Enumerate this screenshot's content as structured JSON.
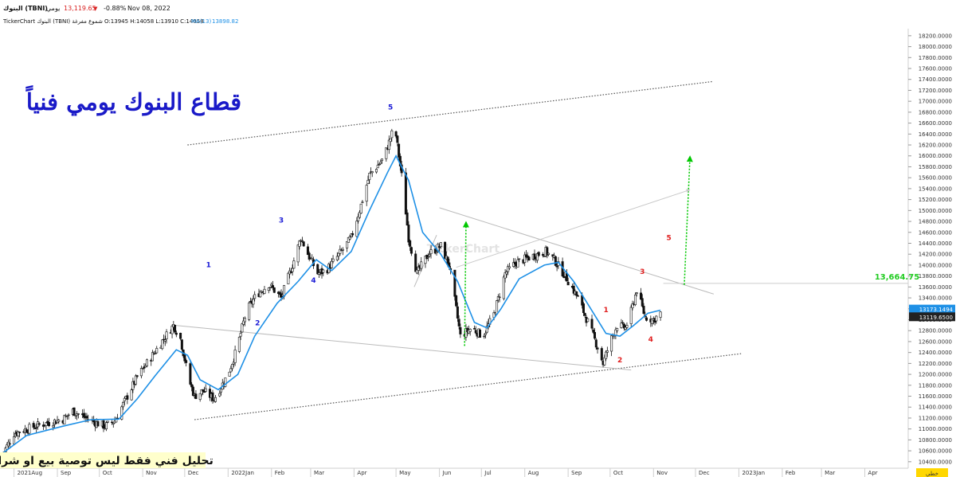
{
  "header": {
    "symbol": "البنوك (TBNI)",
    "period": "يومي",
    "last_price": "13,119.65",
    "change_pct": "-0.88%",
    "date": "Nov 08, 2022",
    "brand_line": "TickerChart البنوك (TBNI) شموع مفرغة O:13945 H:14058 L:13910 C:14058",
    "ma_label": "MA(13)",
    "ma_value": "13898.82"
  },
  "annotations": {
    "title_ar": "قطاع البنوك يومي فنياً",
    "disclaimer_ar": "تحليل فني فقط ليس توصية بيع او شراء",
    "level_label": "13,664.75",
    "watermark": "TickerChart",
    "wave_labels": [
      {
        "text": "1",
        "date": "2021-12-18",
        "price": 13960,
        "color": "#1a1ad6"
      },
      {
        "text": "2",
        "date": "2022-01-22",
        "price": 12900,
        "color": "#1a1ad6"
      },
      {
        "text": "3",
        "date": "2022-02-08",
        "price": 14780,
        "color": "#1a1ad6"
      },
      {
        "text": "4",
        "date": "2022-03-03",
        "price": 13680,
        "color": "#1a1ad6"
      },
      {
        "text": "5",
        "date": "2022-04-27",
        "price": 16850,
        "color": "#1a1ad6"
      },
      {
        "text": "1",
        "date": "2022-09-28",
        "price": 13140,
        "color": "#e02020"
      },
      {
        "text": "2",
        "date": "2022-10-08",
        "price": 12220,
        "color": "#e02020"
      },
      {
        "text": "3",
        "date": "2022-10-24",
        "price": 13840,
        "color": "#e02020"
      },
      {
        "text": "4",
        "date": "2022-10-30",
        "price": 12600,
        "color": "#e02020"
      },
      {
        "text": "5",
        "date": "2022-11-12",
        "price": 14460,
        "color": "#e02020"
      }
    ]
  },
  "chart_data": {
    "type": "candlestick",
    "title": "",
    "xlabel": "",
    "ylabel": "",
    "ylim": [
      10310,
      18300
    ],
    "x_range": [
      "2021-07-22",
      "2023-05-02"
    ],
    "x_ticks": [
      {
        "label": "2021Aug",
        "date": "2021-08-01"
      },
      {
        "label": "Sep",
        "date": "2021-09-01"
      },
      {
        "label": "Oct",
        "date": "2021-10-01"
      },
      {
        "label": "Nov",
        "date": "2021-11-01"
      },
      {
        "label": "Dec",
        "date": "2021-12-01"
      },
      {
        "label": "2022Jan",
        "date": "2022-01-01"
      },
      {
        "label": "Feb",
        "date": "2022-02-01"
      },
      {
        "label": "Mar",
        "date": "2022-03-01"
      },
      {
        "label": "Apr",
        "date": "2022-04-01"
      },
      {
        "label": "May",
        "date": "2022-05-01"
      },
      {
        "label": "Jun",
        "date": "2022-06-01"
      },
      {
        "label": "Jul",
        "date": "2022-07-01"
      },
      {
        "label": "Aug",
        "date": "2022-08-01"
      },
      {
        "label": "Sep",
        "date": "2022-09-01"
      },
      {
        "label": "Oct",
        "date": "2022-10-01"
      },
      {
        "label": "Nov",
        "date": "2022-11-01"
      },
      {
        "label": "Dec",
        "date": "2022-12-01"
      },
      {
        "label": "2023Jan",
        "date": "2023-01-01"
      },
      {
        "label": "Feb",
        "date": "2023-02-01"
      },
      {
        "label": "Mar",
        "date": "2023-03-01"
      },
      {
        "label": "Apr",
        "date": "2023-04-01"
      }
    ],
    "y_ticks": [
      10400,
      10600,
      10800,
      11000,
      11200,
      11400,
      11600,
      11800,
      12000,
      12200,
      12400,
      12600,
      12800,
      13000,
      13200,
      13400,
      13600,
      13800,
      14000,
      14200,
      14400,
      14600,
      14800,
      15000,
      15200,
      15400,
      15600,
      15800,
      16000,
      16200,
      16400,
      16600,
      16800,
      17000,
      17200,
      17400,
      17600,
      17800,
      18000,
      18200
    ],
    "y_tick_format": "0000",
    "price_key": [
      {
        "date": "2021-07-22",
        "price": 10450
      },
      {
        "date": "2021-08-01",
        "price": 10920
      },
      {
        "date": "2021-08-20",
        "price": 11080
      },
      {
        "date": "2021-09-05",
        "price": 11180
      },
      {
        "date": "2021-09-12",
        "price": 11330
      },
      {
        "date": "2021-09-25",
        "price": 11150
      },
      {
        "date": "2021-10-05",
        "price": 11050
      },
      {
        "date": "2021-10-12",
        "price": 11150
      },
      {
        "date": "2021-10-20",
        "price": 11550
      },
      {
        "date": "2021-10-28",
        "price": 11950
      },
      {
        "date": "2021-11-08",
        "price": 12350
      },
      {
        "date": "2021-11-16",
        "price": 12650
      },
      {
        "date": "2021-11-23",
        "price": 12900
      },
      {
        "date": "2021-11-28",
        "price": 12650
      },
      {
        "date": "2021-12-04",
        "price": 11900
      },
      {
        "date": "2021-12-08",
        "price": 11600
      },
      {
        "date": "2021-12-14",
        "price": 11700
      },
      {
        "date": "2021-12-22",
        "price": 11550
      },
      {
        "date": "2022-01-01",
        "price": 12000
      },
      {
        "date": "2022-01-07",
        "price": 12450
      },
      {
        "date": "2022-01-14",
        "price": 13150
      },
      {
        "date": "2022-01-21",
        "price": 13450
      },
      {
        "date": "2022-01-30",
        "price": 13650
      },
      {
        "date": "2022-02-08",
        "price": 13400
      },
      {
        "date": "2022-02-16",
        "price": 14000
      },
      {
        "date": "2022-02-22",
        "price": 14500
      },
      {
        "date": "2022-02-28",
        "price": 14150
      },
      {
        "date": "2022-03-06",
        "price": 13850
      },
      {
        "date": "2022-03-12",
        "price": 13900
      },
      {
        "date": "2022-03-20",
        "price": 14150
      },
      {
        "date": "2022-03-30",
        "price": 14500
      },
      {
        "date": "2022-04-06",
        "price": 15100
      },
      {
        "date": "2022-04-12",
        "price": 15650
      },
      {
        "date": "2022-04-22",
        "price": 15950
      },
      {
        "date": "2022-04-30",
        "price": 16550
      },
      {
        "date": "2022-05-06",
        "price": 15450
      },
      {
        "date": "2022-05-10",
        "price": 14500
      },
      {
        "date": "2022-05-16",
        "price": 13850
      },
      {
        "date": "2022-05-24",
        "price": 14200
      },
      {
        "date": "2022-06-02",
        "price": 14350
      },
      {
        "date": "2022-06-08",
        "price": 14000
      },
      {
        "date": "2022-06-12",
        "price": 13350
      },
      {
        "date": "2022-06-16",
        "price": 12700
      },
      {
        "date": "2022-06-24",
        "price": 12850
      },
      {
        "date": "2022-07-02",
        "price": 12700
      },
      {
        "date": "2022-07-10",
        "price": 13100
      },
      {
        "date": "2022-07-18",
        "price": 13850
      },
      {
        "date": "2022-07-26",
        "price": 14050
      },
      {
        "date": "2022-08-05",
        "price": 14150
      },
      {
        "date": "2022-08-16",
        "price": 14250
      },
      {
        "date": "2022-08-22",
        "price": 14100
      },
      {
        "date": "2022-08-30",
        "price": 13800
      },
      {
        "date": "2022-09-08",
        "price": 13400
      },
      {
        "date": "2022-09-16",
        "price": 12900
      },
      {
        "date": "2022-09-22",
        "price": 12500
      },
      {
        "date": "2022-09-26",
        "price": 12200
      },
      {
        "date": "2022-10-01",
        "price": 12600
      },
      {
        "date": "2022-10-06",
        "price": 12900
      },
      {
        "date": "2022-10-12",
        "price": 12850
      },
      {
        "date": "2022-10-16",
        "price": 13150
      },
      {
        "date": "2022-10-20",
        "price": 13550
      },
      {
        "date": "2022-10-26",
        "price": 13050
      },
      {
        "date": "2022-11-01",
        "price": 13000
      },
      {
        "date": "2022-11-06",
        "price": 13120
      }
    ],
    "moving_average": [
      {
        "date": "2021-07-22",
        "price": 10520
      },
      {
        "date": "2021-08-10",
        "price": 10880
      },
      {
        "date": "2021-09-05",
        "price": 11050
      },
      {
        "date": "2021-09-25",
        "price": 11170
      },
      {
        "date": "2021-10-15",
        "price": 11180
      },
      {
        "date": "2021-10-28",
        "price": 11550
      },
      {
        "date": "2021-11-10",
        "price": 11980
      },
      {
        "date": "2021-11-25",
        "price": 12450
      },
      {
        "date": "2021-12-03",
        "price": 12350
      },
      {
        "date": "2021-12-12",
        "price": 11900
      },
      {
        "date": "2021-12-25",
        "price": 11720
      },
      {
        "date": "2022-01-08",
        "price": 12000
      },
      {
        "date": "2022-01-20",
        "price": 12700
      },
      {
        "date": "2022-02-05",
        "price": 13300
      },
      {
        "date": "2022-02-20",
        "price": 13700
      },
      {
        "date": "2022-03-05",
        "price": 14100
      },
      {
        "date": "2022-03-16",
        "price": 13900
      },
      {
        "date": "2022-03-30",
        "price": 14250
      },
      {
        "date": "2022-04-12",
        "price": 15000
      },
      {
        "date": "2022-04-25",
        "price": 15700
      },
      {
        "date": "2022-05-01",
        "price": 16000
      },
      {
        "date": "2022-05-10",
        "price": 15550
      },
      {
        "date": "2022-05-20",
        "price": 14600
      },
      {
        "date": "2022-06-02",
        "price": 14200
      },
      {
        "date": "2022-06-14",
        "price": 13700
      },
      {
        "date": "2022-06-26",
        "price": 12950
      },
      {
        "date": "2022-07-05",
        "price": 12850
      },
      {
        "date": "2022-07-15",
        "price": 13200
      },
      {
        "date": "2022-07-28",
        "price": 13750
      },
      {
        "date": "2022-08-15",
        "price": 14000
      },
      {
        "date": "2022-08-25",
        "price": 14050
      },
      {
        "date": "2022-09-05",
        "price": 13700
      },
      {
        "date": "2022-09-16",
        "price": 13250
      },
      {
        "date": "2022-09-28",
        "price": 12750
      },
      {
        "date": "2022-10-08",
        "price": 12700
      },
      {
        "date": "2022-10-18",
        "price": 12900
      },
      {
        "date": "2022-10-28",
        "price": 13120
      },
      {
        "date": "2022-11-06",
        "price": 13175
      }
    ],
    "trendlines": [
      {
        "style": "dotted",
        "color": "#555555",
        "from": {
          "date": "2021-12-03",
          "price": 16200
        },
        "to": {
          "date": "2022-12-13",
          "price": 17360
        }
      },
      {
        "style": "dotted",
        "color": "#555555",
        "from": {
          "date": "2021-12-08",
          "price": 11170
        },
        "to": {
          "date": "2023-01-03",
          "price": 12380
        }
      },
      {
        "style": "solid",
        "color": "#bbbbbb",
        "from": {
          "date": "2021-11-23",
          "price": 12900
        },
        "to": {
          "date": "2022-10-16",
          "price": 12080
        }
      },
      {
        "style": "solid",
        "color": "#bbbbbb",
        "from": {
          "date": "2022-06-01",
          "price": 15050
        },
        "to": {
          "date": "2022-12-14",
          "price": 13470
        }
      },
      {
        "style": "solid",
        "color": "#bbbbbb",
        "from": {
          "date": "2022-05-14",
          "price": 13600
        },
        "to": {
          "date": "2022-05-30",
          "price": 14550
        }
      },
      {
        "style": "solid",
        "color": "#cccccc",
        "from": {
          "date": "2022-11-08",
          "price": 13664.75
        },
        "to": {
          "date": "2023-05-02",
          "price": 13664.75
        }
      }
    ],
    "projection_arrows": [
      {
        "color": "#00c800",
        "style": "dotted",
        "from": {
          "date": "2022-06-19",
          "price": 12520
        },
        "to": {
          "date": "2022-06-20",
          "price": 14750
        }
      },
      {
        "color": "#00c800",
        "style": "dotted",
        "from": {
          "date": "2022-11-23",
          "price": 13640
        },
        "to": {
          "date": "2022-11-27",
          "price": 15950
        }
      },
      {
        "color": "#c8c8c8",
        "style": "solid",
        "from": {
          "date": "2022-06-13",
          "price": 13960
        },
        "to": {
          "date": "2022-11-26",
          "price": 15370
        }
      }
    ],
    "series": [
      {
        "name": "البنوك (TBNI)",
        "kind": "candles",
        "last": 13119.65
      },
      {
        "name": "MA(13)",
        "kind": "line",
        "last": 13173.1494
      }
    ],
    "last_value_tags": [
      {
        "value": "13173.1494",
        "color": "#1e90e6"
      },
      {
        "value": "13119.6500",
        "color": "#222222"
      }
    ],
    "corner_label": "خطي",
    "grid": false,
    "legend": "header"
  }
}
